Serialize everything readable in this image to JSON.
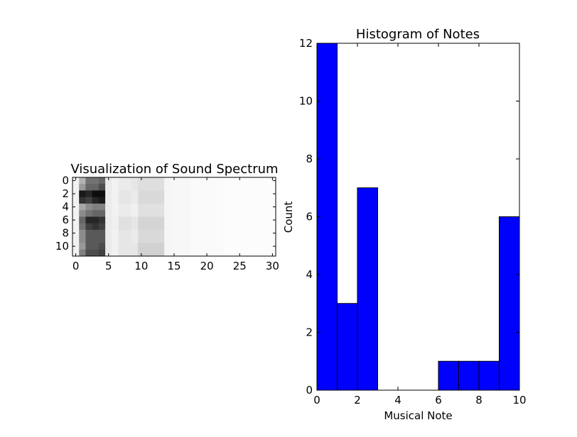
{
  "chart_data": [
    {
      "type": "heatmap",
      "title": "Visualization of Sound Spectrum",
      "xlabel": "",
      "ylabel": "",
      "colormap": "gray_r",
      "xlim": [
        -0.5,
        30.5
      ],
      "ylim": [
        11.5,
        -0.5
      ],
      "xticks": [
        0,
        5,
        10,
        15,
        20,
        25,
        30
      ],
      "yticks": [
        0,
        2,
        4,
        6,
        8,
        10
      ],
      "values": [
        [
          0.05,
          0.3,
          0.55,
          0.55,
          0.6,
          0.08,
          0.05,
          0.08,
          0.08,
          0.1,
          0.13,
          0.13,
          0.13,
          0.13,
          0.04,
          0.03,
          0.03,
          0.03,
          0.02,
          0.02,
          0.02,
          0.02,
          0.02,
          0.01,
          0.01,
          0.01,
          0.01,
          0.01,
          0.01,
          0.01,
          0.01
        ],
        [
          0.05,
          0.4,
          0.6,
          0.6,
          0.7,
          0.08,
          0.05,
          0.08,
          0.08,
          0.1,
          0.13,
          0.13,
          0.13,
          0.13,
          0.04,
          0.03,
          0.03,
          0.03,
          0.02,
          0.02,
          0.02,
          0.02,
          0.02,
          0.01,
          0.01,
          0.01,
          0.01,
          0.01,
          0.01,
          0.01,
          0.01
        ],
        [
          0.05,
          0.9,
          0.85,
          0.95,
          0.95,
          0.08,
          0.05,
          0.1,
          0.1,
          0.08,
          0.15,
          0.15,
          0.15,
          0.15,
          0.04,
          0.03,
          0.03,
          0.03,
          0.02,
          0.02,
          0.02,
          0.02,
          0.02,
          0.01,
          0.01,
          0.01,
          0.01,
          0.01,
          0.01,
          0.01,
          0.01
        ],
        [
          0.05,
          0.8,
          0.75,
          0.85,
          0.9,
          0.08,
          0.05,
          0.1,
          0.1,
          0.08,
          0.15,
          0.15,
          0.15,
          0.15,
          0.04,
          0.03,
          0.03,
          0.03,
          0.02,
          0.02,
          0.02,
          0.02,
          0.02,
          0.01,
          0.01,
          0.01,
          0.01,
          0.01,
          0.01,
          0.01,
          0.01
        ],
        [
          0.05,
          0.35,
          0.45,
          0.5,
          0.5,
          0.08,
          0.05,
          0.08,
          0.08,
          0.06,
          0.12,
          0.12,
          0.12,
          0.12,
          0.04,
          0.03,
          0.03,
          0.03,
          0.02,
          0.02,
          0.02,
          0.02,
          0.02,
          0.01,
          0.01,
          0.01,
          0.01,
          0.01,
          0.01,
          0.01,
          0.01
        ],
        [
          0.05,
          0.45,
          0.55,
          0.6,
          0.6,
          0.08,
          0.05,
          0.08,
          0.08,
          0.06,
          0.12,
          0.12,
          0.12,
          0.12,
          0.04,
          0.03,
          0.03,
          0.03,
          0.02,
          0.02,
          0.02,
          0.02,
          0.02,
          0.01,
          0.01,
          0.01,
          0.01,
          0.01,
          0.01,
          0.01,
          0.01
        ],
        [
          0.05,
          0.6,
          0.85,
          0.85,
          0.8,
          0.08,
          0.06,
          0.12,
          0.12,
          0.1,
          0.17,
          0.17,
          0.17,
          0.17,
          0.04,
          0.03,
          0.03,
          0.03,
          0.02,
          0.02,
          0.02,
          0.02,
          0.02,
          0.01,
          0.01,
          0.01,
          0.01,
          0.01,
          0.01,
          0.01,
          0.01
        ],
        [
          0.05,
          0.55,
          0.75,
          0.8,
          0.75,
          0.08,
          0.06,
          0.12,
          0.12,
          0.1,
          0.17,
          0.17,
          0.17,
          0.17,
          0.04,
          0.03,
          0.03,
          0.03,
          0.02,
          0.02,
          0.02,
          0.02,
          0.02,
          0.01,
          0.01,
          0.01,
          0.01,
          0.01,
          0.01,
          0.01,
          0.01
        ],
        [
          0.05,
          0.45,
          0.65,
          0.65,
          0.65,
          0.08,
          0.05,
          0.1,
          0.1,
          0.08,
          0.15,
          0.15,
          0.15,
          0.15,
          0.04,
          0.03,
          0.03,
          0.03,
          0.02,
          0.02,
          0.02,
          0.02,
          0.02,
          0.01,
          0.01,
          0.01,
          0.01,
          0.01,
          0.01,
          0.01,
          0.01
        ],
        [
          0.05,
          0.45,
          0.65,
          0.65,
          0.65,
          0.08,
          0.05,
          0.1,
          0.1,
          0.08,
          0.15,
          0.15,
          0.15,
          0.15,
          0.04,
          0.03,
          0.03,
          0.03,
          0.02,
          0.02,
          0.02,
          0.02,
          0.02,
          0.01,
          0.01,
          0.01,
          0.01,
          0.01,
          0.01,
          0.01,
          0.01
        ],
        [
          0.05,
          0.4,
          0.65,
          0.65,
          0.7,
          0.08,
          0.05,
          0.1,
          0.1,
          0.1,
          0.18,
          0.18,
          0.18,
          0.18,
          0.04,
          0.03,
          0.03,
          0.03,
          0.02,
          0.02,
          0.02,
          0.02,
          0.02,
          0.01,
          0.01,
          0.01,
          0.01,
          0.01,
          0.01,
          0.01,
          0.01
        ],
        [
          0.05,
          0.5,
          0.7,
          0.7,
          0.75,
          0.08,
          0.05,
          0.1,
          0.1,
          0.1,
          0.18,
          0.18,
          0.18,
          0.18,
          0.04,
          0.03,
          0.03,
          0.03,
          0.02,
          0.02,
          0.02,
          0.02,
          0.02,
          0.01,
          0.01,
          0.01,
          0.01,
          0.01,
          0.01,
          0.01,
          0.01
        ]
      ]
    },
    {
      "type": "bar",
      "subtype": "histogram",
      "title": "Histogram of Notes",
      "xlabel": "Musical Note",
      "ylabel": "Count",
      "xlim": [
        0,
        10
      ],
      "ylim": [
        0,
        12
      ],
      "xticks": [
        0,
        2,
        4,
        6,
        8,
        10
      ],
      "yticks": [
        0,
        2,
        4,
        6,
        8,
        10,
        12
      ],
      "bin_edges": [
        0,
        1,
        2,
        3,
        4,
        5,
        6,
        7,
        8,
        9,
        10
      ],
      "values": [
        12,
        3,
        7,
        0,
        0,
        0,
        1,
        1,
        1,
        6
      ],
      "bar_color": "#0000ff",
      "edge_color": "#000000"
    }
  ]
}
